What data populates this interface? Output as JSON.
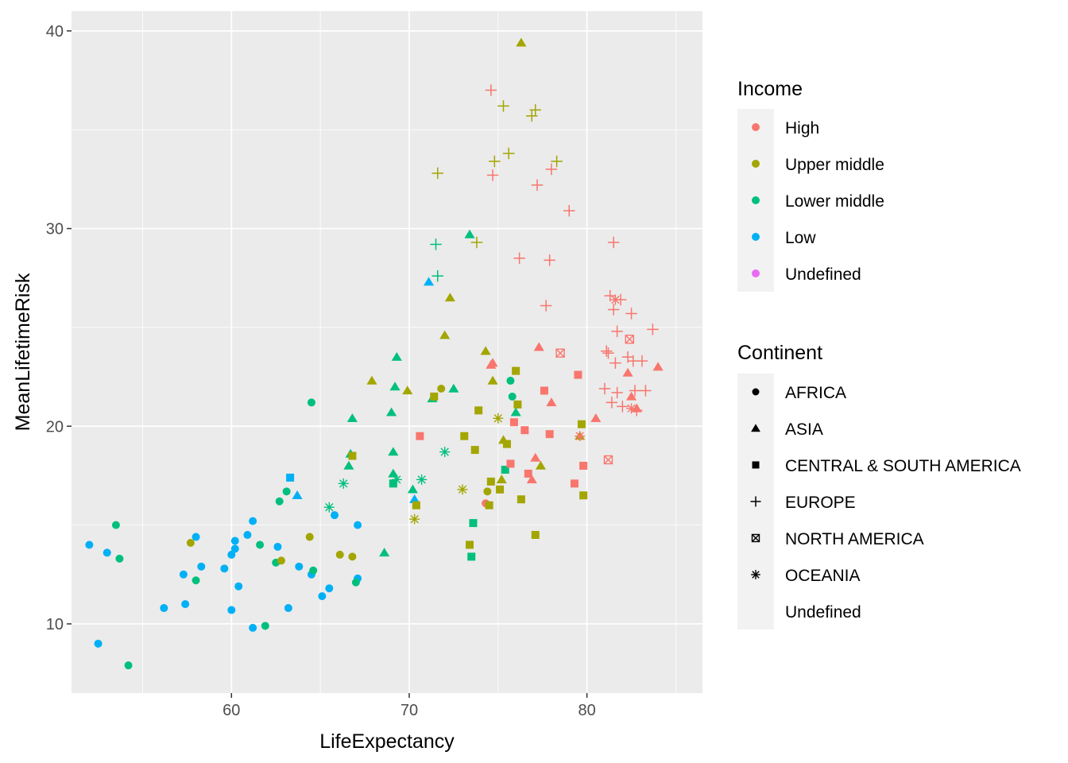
{
  "chart_data": {
    "type": "scatter",
    "xlabel": "LifeExpectancy",
    "ylabel": "MeanLifetimeRisk",
    "xlim": [
      51,
      86.5
    ],
    "ylim": [
      6.5,
      41
    ],
    "xticks": [
      60,
      70,
      80
    ],
    "yticks": [
      10,
      20,
      30,
      40
    ],
    "xtick_labels": [
      "60",
      "70",
      "80"
    ],
    "ytick_labels": [
      "10",
      "20",
      "30",
      "40"
    ],
    "grid": true,
    "legend_placement": "right",
    "colors": {
      "High": "#F8766D",
      "Upper middle": "#A3A500",
      "Lower middle": "#00BF7D",
      "Low": "#00B0F6",
      "Undefined": "#E76BF3"
    },
    "legends": [
      {
        "title": "Income",
        "entries": [
          "High",
          "Upper middle",
          "Lower middle",
          "Low",
          "Undefined"
        ]
      },
      {
        "title": "Continent",
        "entries": [
          "AFRICA",
          "ASIA",
          "CENTRAL & SOUTH AMERICA",
          "EUROPE",
          "NORTH AMERICA",
          "OCEANIA",
          "Undefined"
        ]
      }
    ],
    "series": [
      {
        "income": "Low",
        "continent": "AFRICA",
        "points": [
          [
            52.0,
            14.0
          ],
          [
            52.5,
            9.0
          ],
          [
            53.0,
            13.6
          ],
          [
            56.2,
            10.8
          ],
          [
            57.3,
            12.5
          ],
          [
            57.4,
            11.0
          ],
          [
            58.0,
            14.4
          ],
          [
            58.3,
            12.9
          ],
          [
            59.6,
            12.8
          ],
          [
            60.0,
            10.7
          ],
          [
            60.0,
            13.5
          ],
          [
            60.2,
            13.8
          ],
          [
            60.2,
            14.2
          ],
          [
            60.4,
            11.9
          ],
          [
            60.9,
            14.5
          ],
          [
            61.2,
            9.8
          ],
          [
            61.2,
            15.2
          ],
          [
            62.6,
            13.9
          ],
          [
            63.2,
            10.8
          ],
          [
            63.8,
            12.9
          ],
          [
            64.5,
            12.5
          ],
          [
            65.1,
            11.4
          ],
          [
            65.5,
            11.8
          ],
          [
            65.8,
            15.5
          ],
          [
            67.1,
            15.0
          ],
          [
            67.1,
            12.3
          ]
        ]
      },
      {
        "income": "Lower middle",
        "continent": "AFRICA",
        "points": [
          [
            53.5,
            15.0
          ],
          [
            53.7,
            13.3
          ],
          [
            54.2,
            7.9
          ],
          [
            58.0,
            12.2
          ],
          [
            61.6,
            14.0
          ],
          [
            61.9,
            9.9
          ],
          [
            62.5,
            13.1
          ],
          [
            62.7,
            16.2
          ],
          [
            63.1,
            16.7
          ],
          [
            64.5,
            21.2
          ],
          [
            64.6,
            12.7
          ],
          [
            67.0,
            12.1
          ],
          [
            75.7,
            22.3
          ],
          [
            75.8,
            21.5
          ]
        ]
      },
      {
        "income": "Upper middle",
        "continent": "AFRICA",
        "points": [
          [
            57.7,
            14.1
          ],
          [
            62.8,
            13.2
          ],
          [
            64.4,
            14.4
          ],
          [
            66.1,
            13.5
          ],
          [
            66.8,
            13.4
          ],
          [
            71.8,
            21.9
          ],
          [
            74.4,
            16.7
          ]
        ]
      },
      {
        "income": "High",
        "continent": "AFRICA",
        "points": [
          [
            74.3,
            16.1
          ]
        ]
      },
      {
        "income": "Low",
        "continent": "ASIA",
        "points": [
          [
            63.7,
            16.5
          ],
          [
            70.3,
            16.3
          ],
          [
            71.1,
            27.3
          ]
        ]
      },
      {
        "income": "Lower middle",
        "continent": "ASIA",
        "points": [
          [
            66.6,
            18.0
          ],
          [
            66.7,
            18.6
          ],
          [
            66.8,
            20.4
          ],
          [
            68.6,
            13.6
          ],
          [
            69.0,
            20.7
          ],
          [
            69.1,
            18.7
          ],
          [
            69.1,
            17.6
          ],
          [
            69.2,
            22.0
          ],
          [
            69.3,
            23.5
          ],
          [
            70.2,
            16.8
          ],
          [
            71.3,
            21.4
          ],
          [
            72.5,
            21.9
          ],
          [
            73.4,
            29.7
          ],
          [
            76.0,
            20.7
          ]
        ]
      },
      {
        "income": "Upper middle",
        "continent": "ASIA",
        "points": [
          [
            67.9,
            22.3
          ],
          [
            69.9,
            21.8
          ],
          [
            72.0,
            24.6
          ],
          [
            72.3,
            26.5
          ],
          [
            74.3,
            23.8
          ],
          [
            74.7,
            22.3
          ],
          [
            75.2,
            17.3
          ],
          [
            75.3,
            19.3
          ],
          [
            76.3,
            39.4
          ],
          [
            77.4,
            18.0
          ],
          [
            79.6,
            19.5
          ]
        ]
      },
      {
        "income": "High",
        "continent": "ASIA",
        "points": [
          [
            74.6,
            23.1
          ],
          [
            74.7,
            23.2
          ],
          [
            76.9,
            17.3
          ],
          [
            77.1,
            18.4
          ],
          [
            77.3,
            24.0
          ],
          [
            78.0,
            21.2
          ],
          [
            80.5,
            20.4
          ],
          [
            82.3,
            22.7
          ],
          [
            82.5,
            21.5
          ],
          [
            82.8,
            20.9
          ],
          [
            84.0,
            23.0
          ]
        ]
      },
      {
        "income": "Low",
        "continent": "CENTRAL & SOUTH AMERICA",
        "points": [
          [
            63.3,
            17.4
          ]
        ]
      },
      {
        "income": "Lower middle",
        "continent": "CENTRAL & SOUTH AMERICA",
        "points": [
          [
            69.1,
            17.1
          ],
          [
            73.6,
            15.1
          ],
          [
            73.5,
            13.4
          ],
          [
            75.4,
            17.8
          ]
        ]
      },
      {
        "income": "Upper middle",
        "continent": "CENTRAL & SOUTH AMERICA",
        "points": [
          [
            66.8,
            18.5
          ],
          [
            70.4,
            16.0
          ],
          [
            71.4,
            21.5
          ],
          [
            73.1,
            19.5
          ],
          [
            73.4,
            14.0
          ],
          [
            73.7,
            18.8
          ],
          [
            73.9,
            20.8
          ],
          [
            74.5,
            16.0
          ],
          [
            74.6,
            17.2
          ],
          [
            75.1,
            16.8
          ],
          [
            75.5,
            19.1
          ],
          [
            76.0,
            22.8
          ],
          [
            76.1,
            21.1
          ],
          [
            76.3,
            16.3
          ],
          [
            77.1,
            14.5
          ],
          [
            79.7,
            20.1
          ],
          [
            79.8,
            16.5
          ]
        ]
      },
      {
        "income": "High",
        "continent": "CENTRAL & SOUTH AMERICA",
        "points": [
          [
            70.6,
            19.5
          ],
          [
            75.7,
            18.1
          ],
          [
            75.9,
            20.2
          ],
          [
            76.5,
            19.8
          ],
          [
            76.7,
            17.6
          ],
          [
            77.6,
            21.8
          ],
          [
            77.9,
            19.6
          ],
          [
            79.3,
            17.1
          ],
          [
            79.5,
            22.6
          ],
          [
            79.8,
            18.0
          ]
        ]
      },
      {
        "income": "Lower middle",
        "continent": "EUROPE",
        "points": [
          [
            71.5,
            29.2
          ],
          [
            71.6,
            27.6
          ]
        ]
      },
      {
        "income": "Upper middle",
        "continent": "EUROPE",
        "points": [
          [
            71.6,
            32.8
          ],
          [
            73.8,
            29.3
          ],
          [
            74.8,
            33.4
          ],
          [
            75.3,
            36.2
          ],
          [
            75.6,
            33.8
          ],
          [
            76.9,
            35.7
          ],
          [
            77.1,
            36.0
          ],
          [
            78.3,
            33.4
          ]
        ]
      },
      {
        "income": "High",
        "continent": "EUROPE",
        "points": [
          [
            74.6,
            37.0
          ],
          [
            74.7,
            32.7
          ],
          [
            76.2,
            28.5
          ],
          [
            77.2,
            32.2
          ],
          [
            77.7,
            26.1
          ],
          [
            77.9,
            28.4
          ],
          [
            78.0,
            33.0
          ],
          [
            79.0,
            30.9
          ],
          [
            81.0,
            21.9
          ],
          [
            81.1,
            23.8
          ],
          [
            81.2,
            23.7
          ],
          [
            81.3,
            26.6
          ],
          [
            81.4,
            21.2
          ],
          [
            81.5,
            25.9
          ],
          [
            81.5,
            29.3
          ],
          [
            81.6,
            23.2
          ],
          [
            81.7,
            24.8
          ],
          [
            81.7,
            21.7
          ],
          [
            81.9,
            26.4
          ],
          [
            82.0,
            21.0
          ],
          [
            82.3,
            23.5
          ],
          [
            82.5,
            25.7
          ],
          [
            82.6,
            23.3
          ],
          [
            82.7,
            21.8
          ],
          [
            82.8,
            20.8
          ],
          [
            83.1,
            23.3
          ],
          [
            83.3,
            21.8
          ],
          [
            83.7,
            24.9
          ]
        ]
      },
      {
        "income": "High",
        "continent": "NORTH AMERICA",
        "points": [
          [
            78.5,
            23.7
          ],
          [
            81.2,
            18.3
          ],
          [
            82.4,
            24.4
          ]
        ]
      },
      {
        "income": "Upper middle",
        "continent": "OCEANIA",
        "points": [
          [
            70.3,
            15.3
          ],
          [
            73.0,
            16.8
          ],
          [
            75.0,
            20.4
          ]
        ]
      },
      {
        "income": "Lower middle",
        "continent": "OCEANIA",
        "points": [
          [
            65.5,
            15.9
          ],
          [
            66.3,
            17.1
          ],
          [
            69.3,
            17.3
          ],
          [
            70.7,
            17.3
          ],
          [
            72.0,
            18.7
          ]
        ]
      },
      {
        "income": "High",
        "continent": "OCEANIA",
        "points": [
          [
            79.6,
            19.5
          ],
          [
            81.6,
            26.4
          ],
          [
            82.5,
            20.9
          ]
        ]
      }
    ]
  }
}
